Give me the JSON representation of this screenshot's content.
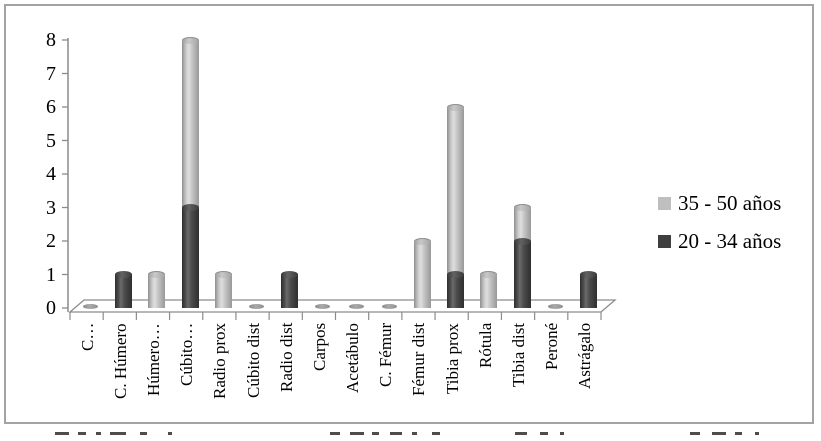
{
  "window": {
    "background": "#ffffff",
    "frame_border_color": "#a3a3a3"
  },
  "chart_data": {
    "type": "bar",
    "subtype": "3d-stacked-cylinder",
    "title": "",
    "categories": [
      "C…",
      "C. Húmero",
      "Húmero…",
      "Cúbito…",
      "Radio prox",
      "Cúbito dist",
      "Radio dist",
      "Carpos",
      "Acetábulo",
      "C. Fémur",
      "Fémur dist",
      "Tibia prox",
      "Rótula",
      "Tibia dist",
      "Peroné",
      "Astrágalo"
    ],
    "series": [
      {
        "name": "20 - 34 años",
        "color": "#3f3f3f",
        "values": [
          0,
          1,
          0,
          3,
          0,
          0,
          1,
          0,
          0,
          0,
          0,
          1,
          0,
          2,
          0,
          1
        ]
      },
      {
        "name": "35 - 50 años",
        "color": "#bfbfbf",
        "values": [
          0,
          0,
          1,
          5,
          1,
          0,
          0,
          0,
          0,
          0,
          2,
          5,
          1,
          1,
          0,
          0
        ]
      }
    ],
    "totals": [
      0,
      1,
      1,
      8,
      1,
      0,
      1,
      0,
      0,
      0,
      2,
      6,
      1,
      3,
      0,
      1
    ],
    "stack_order_bottom_to_top": [
      "20 - 34 años",
      "35 - 50 años"
    ],
    "legend": {
      "position": "right",
      "entries": [
        {
          "label": "35 - 50 años",
          "swatch_color": "#bfbfbf"
        },
        {
          "label": "20 - 34 años",
          "swatch_color": "#3f3f3f"
        }
      ]
    },
    "y_axis": {
      "min": 0,
      "max": 8,
      "tick_interval": 1,
      "ticks": [
        0,
        1,
        2,
        3,
        4,
        5,
        6,
        7,
        8
      ]
    },
    "x_axis": {
      "label_rotation_degrees": -90,
      "truncated_labels": [
        "C…",
        "Húmero…",
        "Cúbito…"
      ]
    },
    "grid": false,
    "axis_color": "#8c8c8c",
    "text_color": "#000000"
  }
}
